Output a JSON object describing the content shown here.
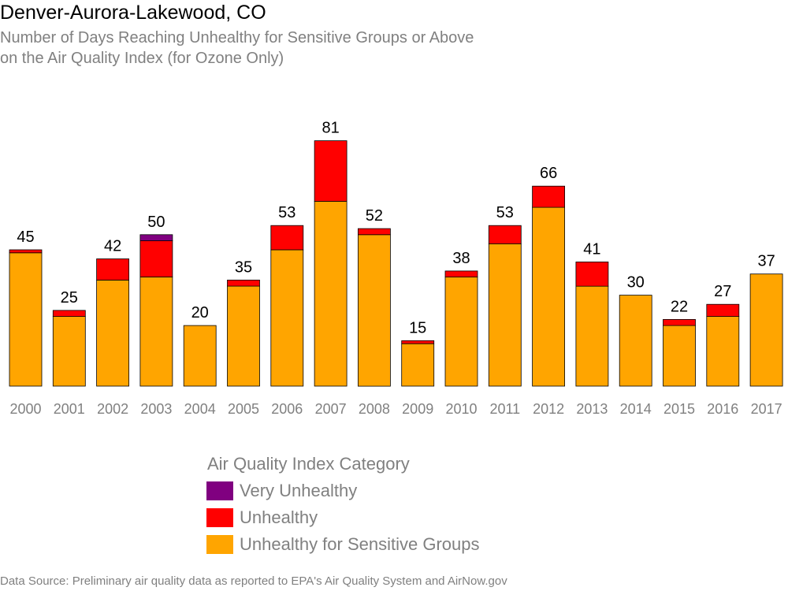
{
  "chart_data": {
    "type": "bar",
    "stacked": true,
    "title": "Denver-Aurora-Lakewood, CO",
    "subtitle": [
      "Number of Days Reaching Unhealthy for Sensitive Groups or Above",
      "on the Air Quality Index (for Ozone Only)"
    ],
    "xlabel": "",
    "ylabel": "",
    "ylim": [
      0,
      81
    ],
    "grid": false,
    "categories": [
      "2000",
      "2001",
      "2002",
      "2003",
      "2004",
      "2005",
      "2006",
      "2007",
      "2008",
      "2009",
      "2010",
      "2011",
      "2012",
      "2013",
      "2014",
      "2015",
      "2016",
      "2017"
    ],
    "totals": [
      45,
      25,
      42,
      50,
      20,
      35,
      53,
      81,
      52,
      15,
      38,
      53,
      66,
      41,
      30,
      22,
      27,
      37
    ],
    "series": [
      {
        "name": "Unhealthy for Sensitive Groups",
        "color": "#FFA500",
        "values": [
          44,
          23,
          35,
          36,
          20,
          33,
          45,
          61,
          50,
          14,
          36,
          47,
          59,
          33,
          30,
          20,
          23,
          37
        ]
      },
      {
        "name": "Unhealthy",
        "color": "#FF0000",
        "values": [
          1,
          2,
          7,
          12,
          0,
          2,
          8,
          20,
          2,
          1,
          2,
          6,
          7,
          8,
          0,
          2,
          4,
          0
        ]
      },
      {
        "name": "Very Unhealthy",
        "color": "#800080",
        "values": [
          0,
          0,
          0,
          2,
          0,
          0,
          0,
          0,
          0,
          0,
          0,
          0,
          0,
          0,
          0,
          0,
          0,
          0
        ]
      }
    ],
    "legend": {
      "title": "Air Quality Index Category",
      "placement": "bottom",
      "items": [
        {
          "label": "Very Unhealthy",
          "color": "#800080"
        },
        {
          "label": "Unhealthy",
          "color": "#FF0000"
        },
        {
          "label": "Unhealthy for Sensitive Groups",
          "color": "#FFA500"
        }
      ]
    },
    "source": "Data Source: Preliminary air quality data as reported to EPA's Air Quality System and AirNow.gov"
  }
}
